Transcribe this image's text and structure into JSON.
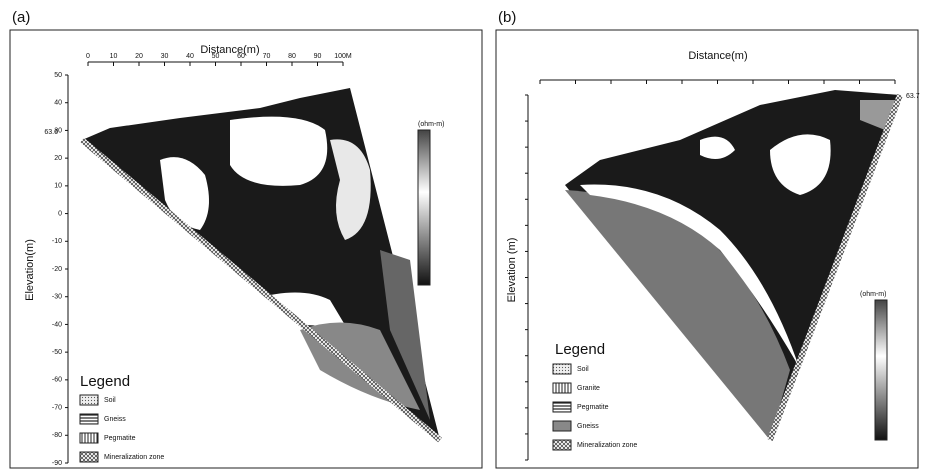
{
  "panels": [
    {
      "label": "(a)",
      "x_axis_title": "Distance(m)",
      "x_ticks": [
        0,
        10,
        20,
        30,
        40,
        50,
        60,
        70,
        80,
        90,
        "100M"
      ],
      "y_axis_title": "Elevation(m)",
      "y_ticks": [
        50,
        40,
        30,
        20,
        10,
        0,
        -10,
        -20,
        -30,
        -40,
        -50,
        -60,
        -70,
        -80,
        -90
      ],
      "colorbar_unit": "(ohm-m)",
      "start_label": "63.6",
      "legend_title": "Legend",
      "legend": [
        "Soil",
        "Gneiss",
        "Pegmatite",
        "Mineralization zone"
      ]
    },
    {
      "label": "(b)",
      "x_axis_title": "Distance(m)",
      "y_axis_title": "Elevation (m)",
      "colorbar_unit": "(ohm-m)",
      "start_label": "63.7",
      "legend_title": "Legend",
      "legend": [
        "Soil",
        "Granite",
        "Pegmatite",
        "Gneiss",
        "Mineralization zone"
      ]
    }
  ]
}
